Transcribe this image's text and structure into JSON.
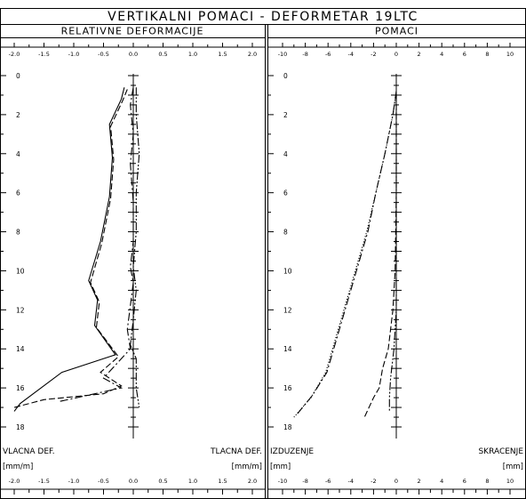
{
  "title": "VERTIKALNI POMACI  -  DEFORMETAR 19LTC",
  "chart_data": [
    {
      "type": "line",
      "title": "RELATIVNE DEFORMACIJE",
      "x_ticks": [
        "-2.0",
        "-1.5",
        "-1.0",
        "-0.5",
        "0.0",
        "0.5",
        "1.0",
        "1.5",
        "2.0"
      ],
      "xlim": [
        -2.0,
        2.0
      ],
      "y_ticks": [
        "0",
        "2",
        "4",
        "6",
        "8",
        "10",
        "12",
        "14",
        "16",
        "18"
      ],
      "ylim": [
        0,
        18
      ],
      "y_inverted": true,
      "label_left": "VLACNA DEF.",
      "label_right": "TLACNA DEF.",
      "unit_left": "[mm/m]",
      "unit_right": "[mm/m]",
      "series": [
        {
          "style": "solid",
          "points": [
            [
              -0.15,
              0.6
            ],
            [
              -0.2,
              1.2
            ],
            [
              -0.4,
              2.5
            ],
            [
              -0.35,
              4.2
            ],
            [
              -0.4,
              6.2
            ],
            [
              -0.55,
              8.5
            ],
            [
              -0.75,
              10.5
            ],
            [
              -0.6,
              11.5
            ],
            [
              -0.65,
              12.8
            ],
            [
              -0.3,
              14.3
            ],
            [
              -1.2,
              15.2
            ],
            [
              -1.9,
              16.8
            ],
            [
              -2.0,
              17.2
            ]
          ]
        },
        {
          "style": "dashed",
          "points": [
            [
              -0.1,
              0.7
            ],
            [
              -0.18,
              1.3
            ],
            [
              -0.38,
              2.6
            ],
            [
              -0.33,
              4.3
            ],
            [
              -0.38,
              6.3
            ],
            [
              -0.53,
              8.6
            ],
            [
              -0.72,
              10.6
            ],
            [
              -0.57,
              11.6
            ],
            [
              -0.62,
              12.9
            ],
            [
              -0.25,
              14.4
            ],
            [
              -0.55,
              15.2
            ],
            [
              -0.2,
              15.9
            ],
            [
              -0.5,
              16.3
            ],
            [
              -1.5,
              16.6
            ],
            [
              -2.0,
              17.0
            ]
          ]
        },
        {
          "style": "dashdot",
          "points": [
            [
              0.0,
              0.6
            ],
            [
              -0.05,
              1.5
            ],
            [
              0.0,
              3.0
            ],
            [
              -0.05,
              4.5
            ],
            [
              0.0,
              6.5
            ],
            [
              0.0,
              8.5
            ],
            [
              -0.05,
              9.8
            ],
            [
              0.0,
              10.6
            ],
            [
              -0.05,
              11.8
            ],
            [
              -0.1,
              13.0
            ],
            [
              -0.05,
              14.0
            ],
            [
              -0.5,
              15.5
            ],
            [
              -0.2,
              16.0
            ],
            [
              -0.8,
              16.4
            ],
            [
              -1.25,
              16.7
            ]
          ]
        },
        {
          "style": "dashdotdot",
          "points": [
            [
              0.05,
              0.6
            ],
            [
              0.05,
              2.0
            ],
            [
              0.1,
              4.0
            ],
            [
              0.05,
              6.0
            ],
            [
              0.05,
              8.0
            ],
            [
              0.0,
              9.8
            ],
            [
              0.05,
              11.0
            ],
            [
              0.0,
              12.5
            ],
            [
              -0.05,
              13.8
            ],
            [
              0.05,
              14.5
            ],
            [
              0.05,
              16.0
            ],
            [
              0.1,
              17.0
            ]
          ]
        }
      ]
    },
    {
      "type": "line",
      "title": "POMACI",
      "x_ticks": [
        "-10",
        "-8",
        "-6",
        "-4",
        "-2",
        "0",
        "2",
        "4",
        "6",
        "8",
        "10"
      ],
      "xlim": [
        -10,
        10
      ],
      "y_ticks": [
        "0",
        "2",
        "4",
        "6",
        "8",
        "10",
        "12",
        "14",
        "16",
        "18"
      ],
      "ylim": [
        0,
        18
      ],
      "y_inverted": true,
      "label_left": "IZDUZENJE",
      "label_right": "SKRACENJE",
      "unit_left": "[mm]",
      "unit_right": "[mm]",
      "series": [
        {
          "style": "dotted",
          "points": [
            [
              0.0,
              0.8
            ],
            [
              -0.3,
              2.0
            ],
            [
              -1.0,
              4.0
            ],
            [
              -1.8,
              6.0
            ],
            [
              -2.6,
              8.0
            ],
            [
              -3.6,
              10.0
            ],
            [
              -4.6,
              12.0
            ],
            [
              -5.6,
              14.0
            ],
            [
              -6.2,
              15.2
            ],
            [
              -7.5,
              16.5
            ],
            [
              -9.0,
              17.5
            ]
          ]
        },
        {
          "style": "dashdot",
          "points": [
            [
              0.0,
              0.8
            ],
            [
              -0.3,
              2.0
            ],
            [
              -1.0,
              4.0
            ],
            [
              -1.8,
              6.0
            ],
            [
              -2.5,
              8.0
            ],
            [
              -3.5,
              10.0
            ],
            [
              -4.5,
              12.0
            ],
            [
              -5.5,
              14.0
            ],
            [
              -6.1,
              15.2
            ],
            [
              -7.4,
              16.4
            ],
            [
              -8.8,
              17.4
            ]
          ]
        },
        {
          "style": "dashed",
          "points": [
            [
              0.0,
              1.0
            ],
            [
              0.0,
              6.0
            ],
            [
              -0.1,
              10.0
            ],
            [
              -0.3,
              12.0
            ],
            [
              -0.7,
              14.0
            ],
            [
              -1.2,
              15.0
            ],
            [
              -1.5,
              16.0
            ],
            [
              -2.0,
              16.5
            ],
            [
              -2.8,
              17.5
            ]
          ]
        },
        {
          "style": "dashdotdot",
          "points": [
            [
              0.0,
              1.0
            ],
            [
              0.0,
              8.0
            ],
            [
              0.0,
              12.0
            ],
            [
              -0.2,
              14.0
            ],
            [
              -0.5,
              15.5
            ],
            [
              -0.6,
              16.5
            ],
            [
              -0.6,
              17.2
            ]
          ]
        }
      ]
    }
  ]
}
